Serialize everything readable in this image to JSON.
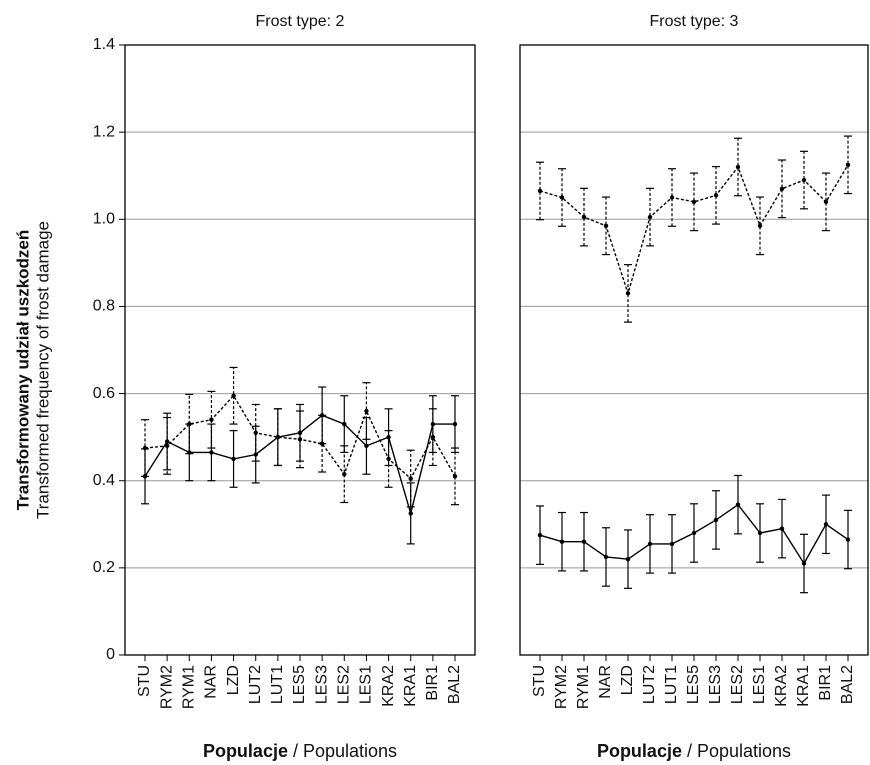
{
  "chart_data": [
    {
      "type": "line",
      "title": "Frost type: 2",
      "ylabel_bold": "Transformowany udział uszkodzeń",
      "ylabel": "Transformed frequency of frost damage",
      "xlabel_bold": "Populacje",
      "xlabel": "/ Populations",
      "categories": [
        "STU",
        "RYM2",
        "RYM1",
        "NAR",
        "LZD",
        "LUT2",
        "LUT1",
        "LES5",
        "LES3",
        "LES2",
        "LES1",
        "KRA2",
        "KRA1",
        "BIR1",
        "BAL2"
      ],
      "ylim": [
        0,
        1.4
      ],
      "yticks": [
        0,
        0.2,
        0.4,
        0.6,
        0.8,
        {
          "value": 1,
          "label": "1.0"
        },
        1.2,
        1.4
      ],
      "grid": true,
      "series": [
        {
          "color": "#000000",
          "dashed": false,
          "values": [
            0.41,
            0.49,
            0.465,
            0.465,
            0.45,
            0.46,
            0.5,
            0.51,
            0.55,
            0.53,
            0.48,
            0.5,
            0.325,
            0.53,
            0.53
          ],
          "errors": [
            0.063,
            0.065,
            0.065,
            0.065,
            0.065,
            0.065,
            0.065,
            0.065,
            0.065,
            0.065,
            0.065,
            0.065,
            0.07,
            0.065,
            0.065
          ]
        },
        {
          "color": "#000000",
          "dashed": true,
          "values": [
            0.475,
            0.48,
            0.53,
            0.54,
            0.595,
            0.51,
            0.5,
            0.495,
            0.485,
            0.415,
            0.56,
            0.45,
            0.405,
            0.5,
            0.41
          ],
          "errors": [
            0.065,
            0.065,
            0.068,
            0.065,
            0.065,
            0.065,
            0.065,
            0.065,
            0.065,
            0.065,
            0.065,
            0.065,
            0.065,
            0.065,
            0.065
          ]
        }
      ]
    },
    {
      "type": "line",
      "title": "Frost type: 3",
      "xlabel_bold": "Populacje",
      "xlabel": "/ Populations",
      "categories": [
        "STU",
        "RYM2",
        "RYM1",
        "NAR",
        "LZD",
        "LUT2",
        "LUT1",
        "LES5",
        "LES3",
        "LES2",
        "LES1",
        "KRA2",
        "KRA1",
        "BIR1",
        "BAL2"
      ],
      "ylim": [
        0,
        1.4
      ],
      "yticks": [
        0.2,
        0.4,
        0.6,
        0.8,
        1,
        1.2
      ],
      "grid": true,
      "series": [
        {
          "color": "#000000",
          "dashed": false,
          "values": [
            0.275,
            0.26,
            0.26,
            0.225,
            0.22,
            0.255,
            0.255,
            0.28,
            0.31,
            0.345,
            0.28,
            0.29,
            0.21,
            0.3,
            0.265
          ],
          "errors": [
            0.067,
            0.067,
            0.067,
            0.067,
            0.067,
            0.067,
            0.067,
            0.067,
            0.067,
            0.067,
            0.067,
            0.067,
            0.067,
            0.067,
            0.067
          ]
        },
        {
          "color": "#000000",
          "dashed": true,
          "values": [
            1.065,
            1.05,
            1.005,
            0.985,
            0.83,
            1.005,
            1.05,
            1.04,
            1.055,
            1.12,
            0.985,
            1.07,
            1.09,
            1.04,
            1.125
          ],
          "errors": [
            0.066,
            0.066,
            0.066,
            0.066,
            0.066,
            0.066,
            0.066,
            0.066,
            0.066,
            0.066,
            0.066,
            0.066,
            0.066,
            0.066,
            0.066
          ]
        }
      ]
    }
  ]
}
